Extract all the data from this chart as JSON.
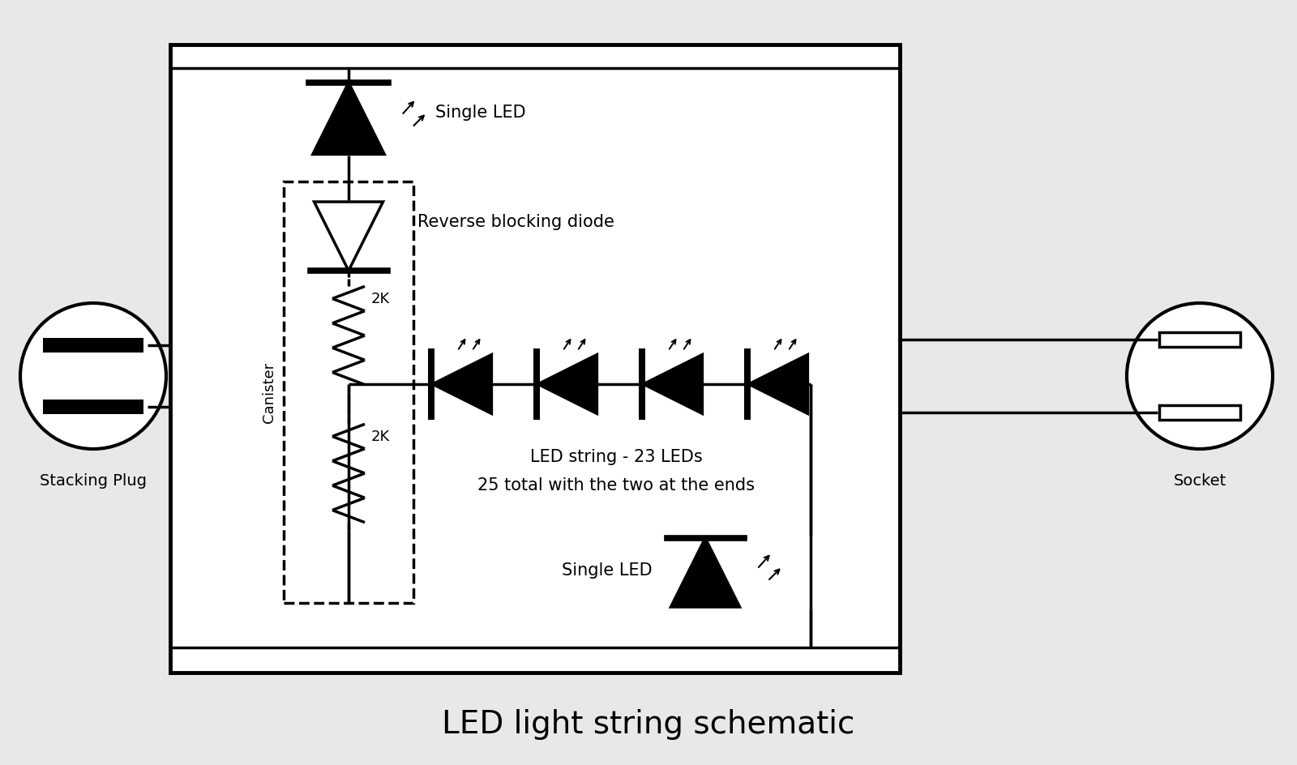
{
  "bg_color": "#e8e8e8",
  "diagram_bg": "#ffffff",
  "title": "LED light string schematic",
  "title_fontsize": 28,
  "lc": "#000000",
  "lw": 2.5,
  "stacking_plug_label": "Stacking Plug",
  "socket_label": "Socket",
  "single_led_top_label": "Single LED",
  "single_led_bot_label": "Single LED",
  "reverse_diode_label": "Reverse blocking diode",
  "led_string_label1": "LED string - 23 LEDs",
  "led_string_label2": "25 total with the two at the ends",
  "canister_label": "Canister",
  "r1_label": "2K",
  "r2_label": "2K"
}
